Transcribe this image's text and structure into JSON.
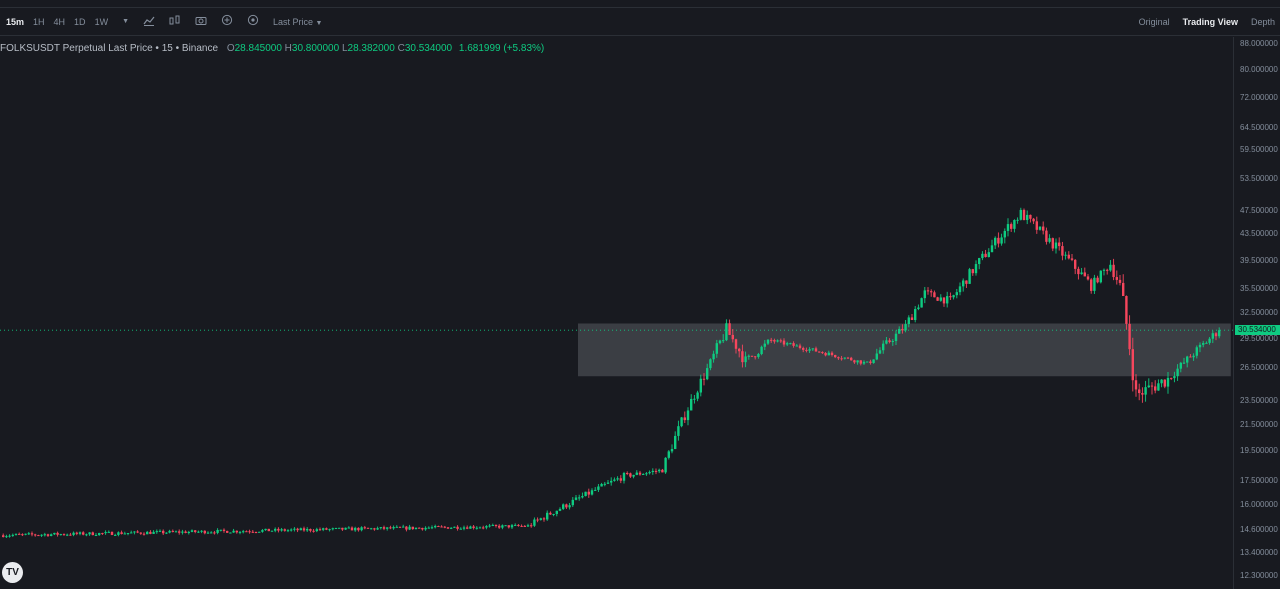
{
  "toolbar": {
    "timeframes": [
      "15m",
      "1H",
      "4H",
      "1D",
      "1W"
    ],
    "active_timeframe": "15m",
    "price_type": "Last Price",
    "views": [
      "Original",
      "Trading View",
      "Depth"
    ],
    "active_view": "Trading View",
    "icons": [
      "chevron-down-icon",
      "indicators-icon",
      "compare-icon",
      "camera-icon",
      "add-alert-icon",
      "settings-icon"
    ]
  },
  "legend": {
    "symbol": "FOLKSUSDT Perpetual Last Price • 15 • Binance",
    "o_label": "O",
    "o_value": "28.845000",
    "h_label": "H",
    "h_value": "30.800000",
    "l_label": "L",
    "l_value": "28.382000",
    "c_label": "C",
    "c_value": "30.534000",
    "change": "1.681999 (+5.83%)"
  },
  "logo": "TV",
  "colors": {
    "up": "#0ecb81",
    "down": "#f6465d",
    "background": "#181a20",
    "zone": "#5a5d62"
  },
  "chart_data": {
    "type": "candlestick",
    "scale": "log",
    "y_ticks": [
      "88.000000",
      "80.000000",
      "72.000000",
      "64.500000",
      "59.500000",
      "53.500000",
      "47.500000",
      "43.500000",
      "39.500000",
      "35.500000",
      "32.500000",
      "29.500000",
      "26.500000",
      "23.500000",
      "21.500000",
      "19.500000",
      "17.500000",
      "16.000000",
      "14.600000",
      "13.400000",
      "12.300000"
    ],
    "y_tick_values": [
      88,
      80,
      72,
      64.5,
      59.5,
      53.5,
      47.5,
      43.5,
      39.5,
      35.5,
      32.5,
      29.5,
      26.5,
      23.5,
      21.5,
      19.5,
      17.5,
      16.0,
      14.6,
      13.4,
      12.3
    ],
    "last_price": 30.534,
    "last_price_label": "30.534000",
    "zone": {
      "from": 25.75,
      "to": 31.3
    },
    "segments": [
      {
        "n": 165,
        "from": 14.3,
        "to": 14.8,
        "vol": 0.008
      },
      {
        "n": 30,
        "from": 14.8,
        "to": 17.8,
        "vol": 0.015
      },
      {
        "n": 12,
        "from": 17.8,
        "to": 18.2,
        "vol": 0.012
      },
      {
        "n": 15,
        "from": 18.2,
        "to": 27.0,
        "vol": 0.025
      },
      {
        "n": 5,
        "from": 27.0,
        "to": 30.6,
        "vol": 0.03
      },
      {
        "n": 6,
        "from": 30.6,
        "to": 27.2,
        "vol": 0.03
      },
      {
        "n": 8,
        "from": 27.2,
        "to": 29.4,
        "vol": 0.02
      },
      {
        "n": 30,
        "from": 29.4,
        "to": 27.0,
        "vol": 0.01
      },
      {
        "n": 12,
        "from": 27.0,
        "to": 31.0,
        "vol": 0.02
      },
      {
        "n": 6,
        "from": 31.0,
        "to": 35.0,
        "vol": 0.025
      },
      {
        "n": 8,
        "from": 35.0,
        "to": 34.0,
        "vol": 0.02
      },
      {
        "n": 22,
        "from": 34.0,
        "to": 47.0,
        "vol": 0.025
      },
      {
        "n": 14,
        "from": 47.0,
        "to": 40.0,
        "vol": 0.025
      },
      {
        "n": 8,
        "from": 40.0,
        "to": 36.0,
        "vol": 0.025
      },
      {
        "n": 6,
        "from": 36.0,
        "to": 39.0,
        "vol": 0.02
      },
      {
        "n": 3,
        "from": 39.0,
        "to": 36.0,
        "vol": 0.03
      },
      {
        "n": 5,
        "from": 36.0,
        "to": 24.0,
        "vol": 0.05
      },
      {
        "n": 10,
        "from": 24.0,
        "to": 25.5,
        "vol": 0.035
      },
      {
        "n": 16,
        "from": 25.5,
        "to": 30.534,
        "vol": 0.02
      }
    ]
  }
}
